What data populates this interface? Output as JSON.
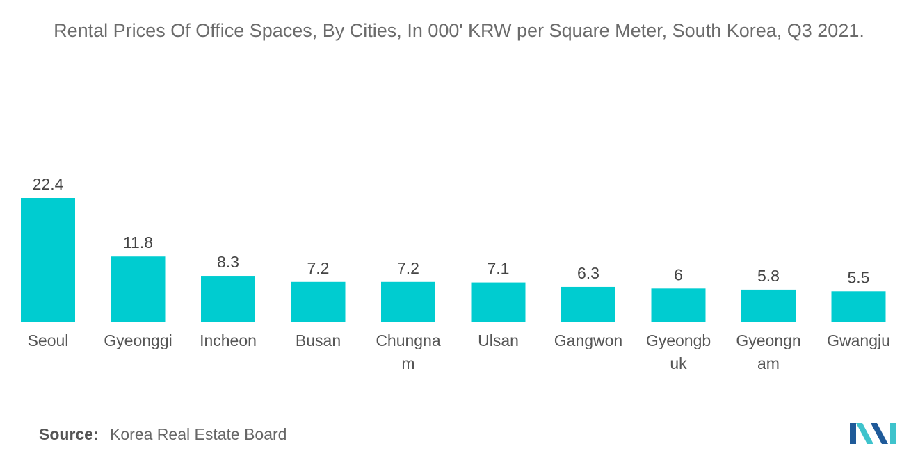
{
  "chart_data": {
    "type": "bar",
    "title": "Rental Prices Of Office Spaces, By Cities, In 000' KRW per Square Meter, South Korea, Q3 2021.",
    "categories": [
      "Seoul",
      "Gyeonggi",
      "Incheon",
      "Busan",
      "Chungnam",
      "Ulsan",
      "Gangwon",
      "Gyeongbuk",
      "Gyeongnam",
      "Gwangju"
    ],
    "category_lines": [
      [
        "Seoul"
      ],
      [
        "Gyeonggi"
      ],
      [
        "Incheon"
      ],
      [
        "Busan"
      ],
      [
        "Chungna",
        "m"
      ],
      [
        "Ulsan"
      ],
      [
        "Gangwon"
      ],
      [
        "Gyeongb",
        "uk"
      ],
      [
        "Gyeongn",
        "am"
      ],
      [
        "Gwangju"
      ]
    ],
    "values": [
      22.4,
      11.8,
      8.3,
      7.2,
      7.2,
      7.1,
      6.3,
      6,
      5.8,
      5.5
    ],
    "value_labels": [
      "22.4",
      "11.8",
      "8.3",
      "7.2",
      "7.2",
      "7.1",
      "6.3",
      "6",
      "5.8",
      "5.5"
    ],
    "bar_color": "#00CCD0",
    "grid": false,
    "legend": "none"
  },
  "source": {
    "label": "Source:",
    "text": "Korea Real Estate Board"
  },
  "logo": {
    "colors": [
      "#1f5a99",
      "#3ec3cc"
    ]
  }
}
